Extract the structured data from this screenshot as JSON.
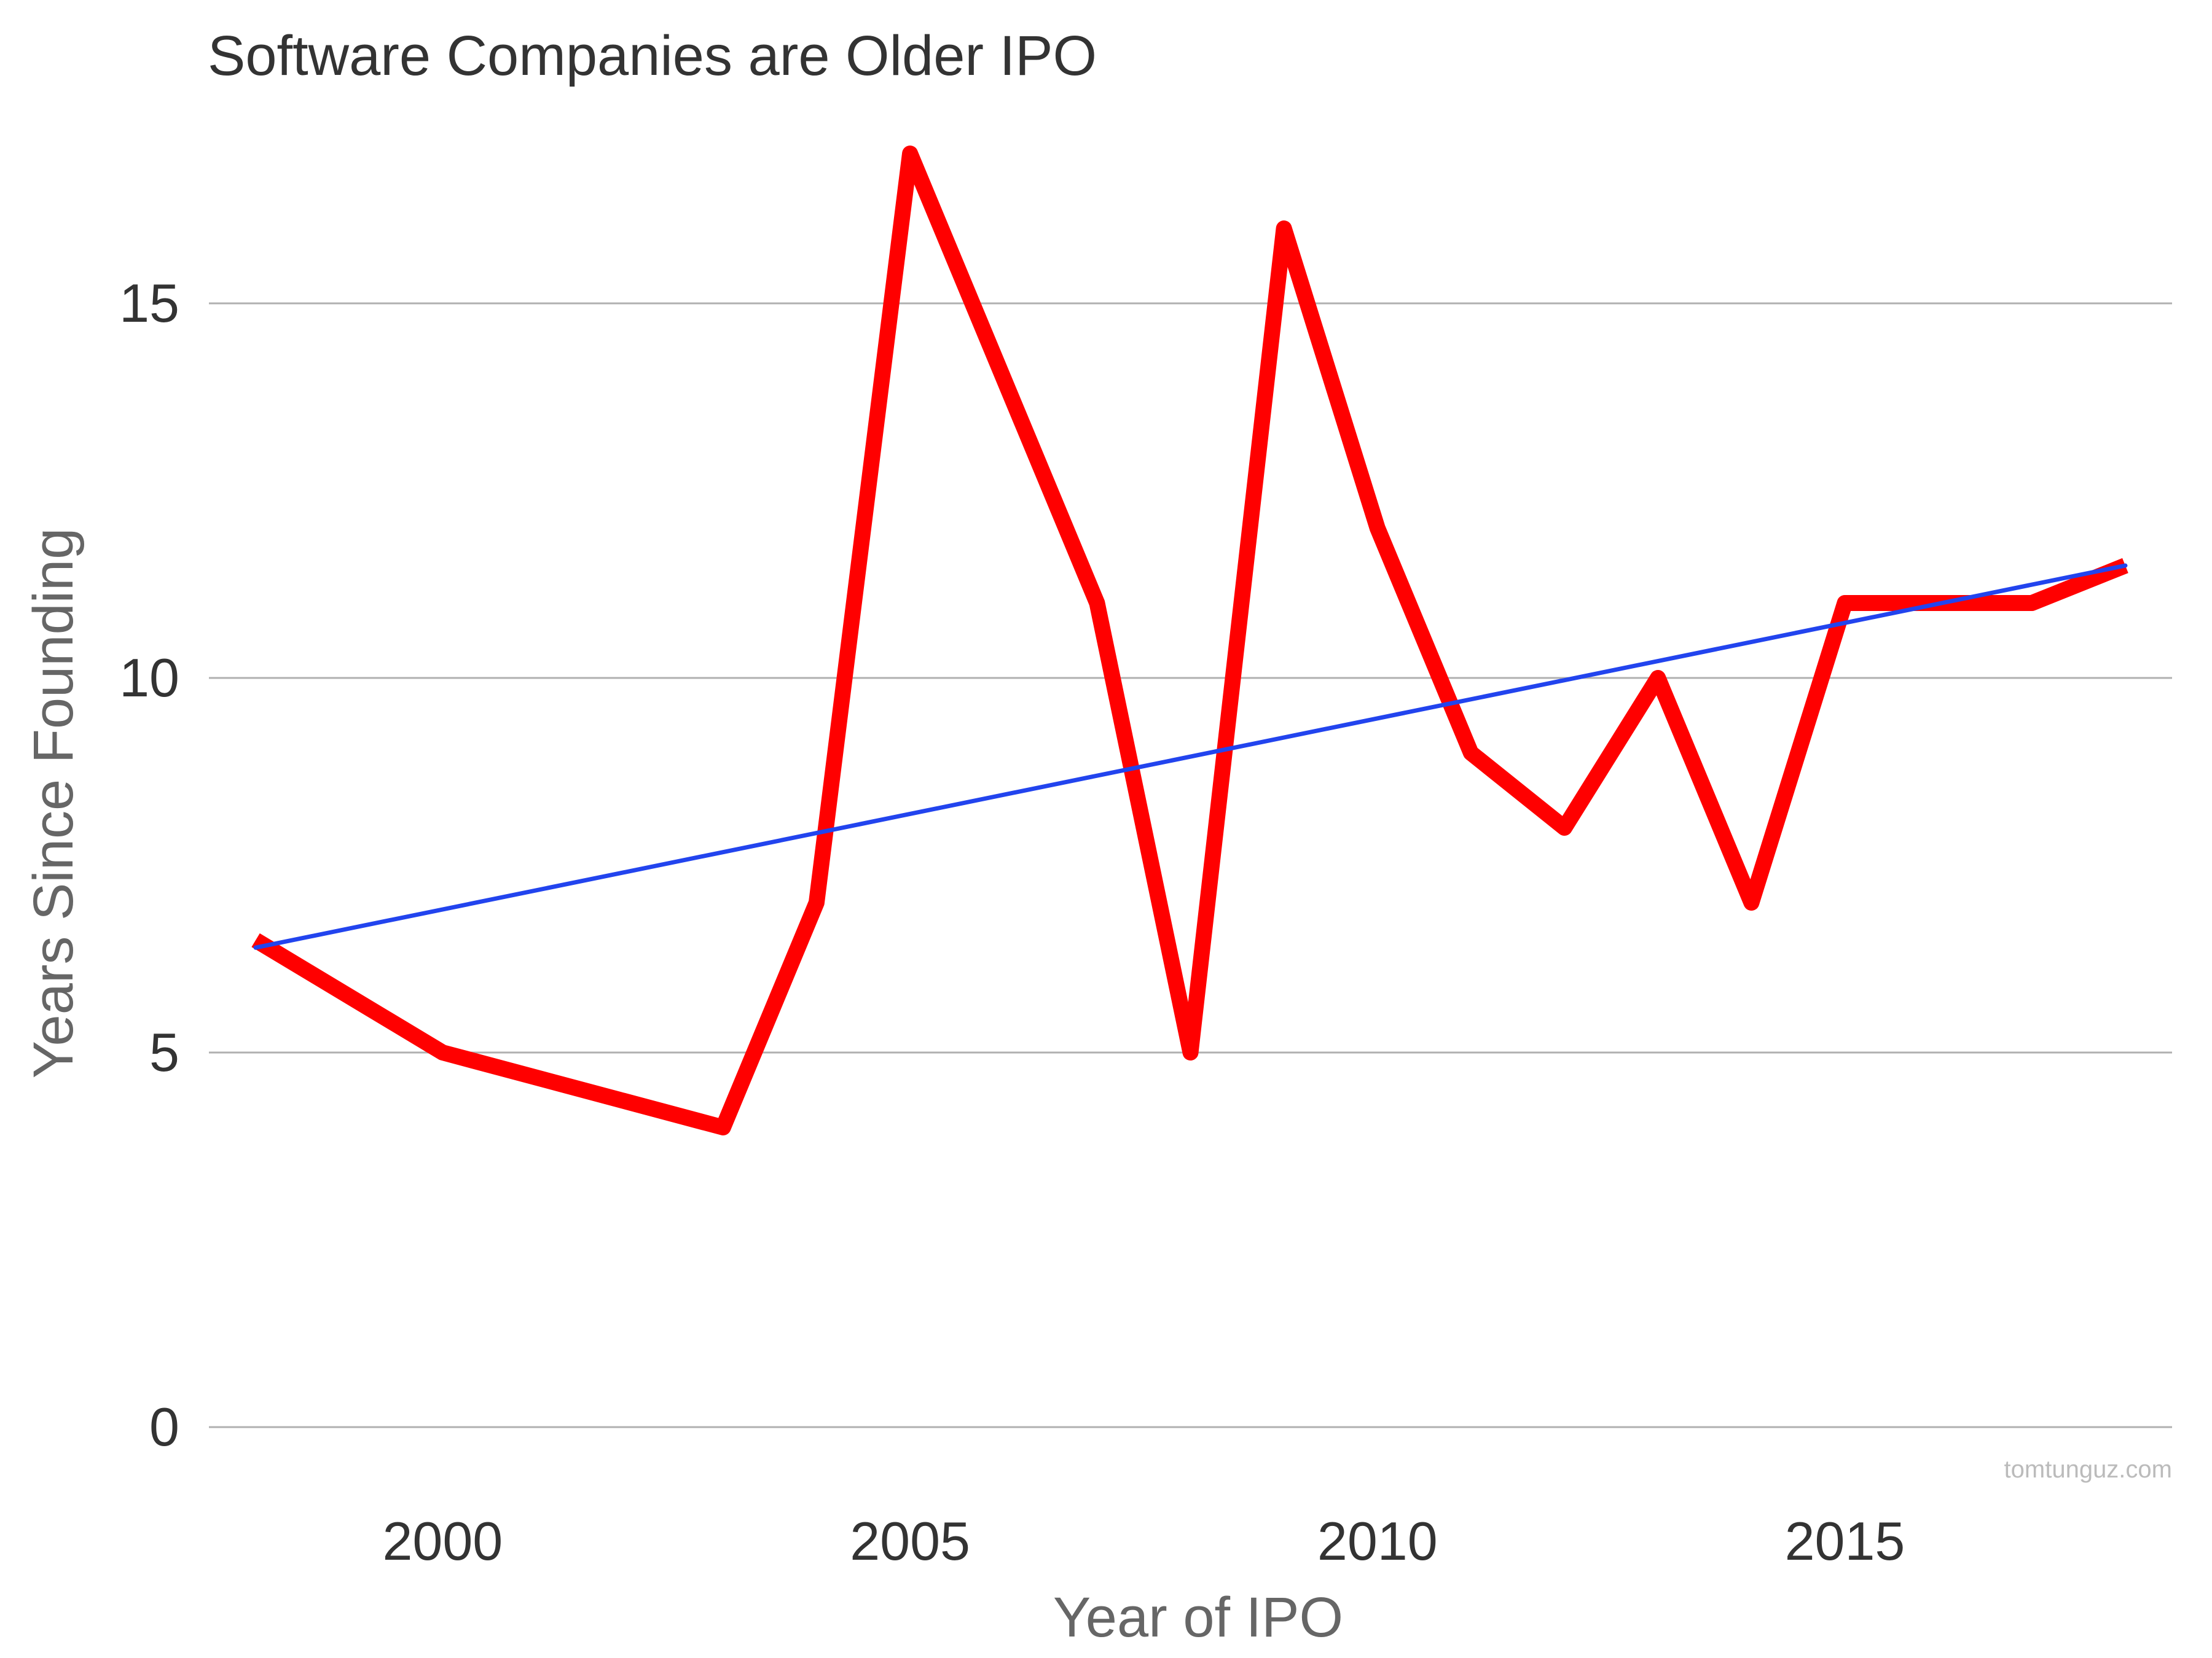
{
  "watermark": "tomtunguz.com",
  "colors": {
    "series": "#ff0000",
    "trendline": "#2244ee",
    "grid": "#b0b0b0",
    "title": "#333333",
    "axis_label": "#666666",
    "tick_label": "#333333",
    "watermark": "#bbbbbb"
  },
  "chart_data": {
    "type": "line",
    "title": "Software Companies are Older IPO",
    "xlabel": "Year of IPO",
    "ylabel": "Years Since Founding",
    "xlim": [
      1997.5,
      2018.5
    ],
    "ylim": [
      0,
      17
    ],
    "x_ticks": [
      2000,
      2005,
      2010,
      2015
    ],
    "y_ticks": [
      0,
      5,
      10,
      15
    ],
    "grid": "horizontal",
    "legend": "none",
    "series": [
      {
        "x": [
          1998,
          2000,
          2003,
          2004,
          2005,
          2006,
          2007,
          2008,
          2009,
          2010,
          2011,
          2012,
          2013,
          2014,
          2015,
          2016,
          2017,
          2018
        ],
        "values": [
          6.5,
          5,
          4,
          7,
          17,
          14,
          11,
          5,
          16,
          12,
          9,
          8,
          10,
          7,
          11,
          11,
          11,
          11.5
        ]
      }
    ],
    "trendline": {
      "x": [
        1998,
        2018
      ],
      "values": [
        6.4,
        11.5
      ]
    }
  }
}
